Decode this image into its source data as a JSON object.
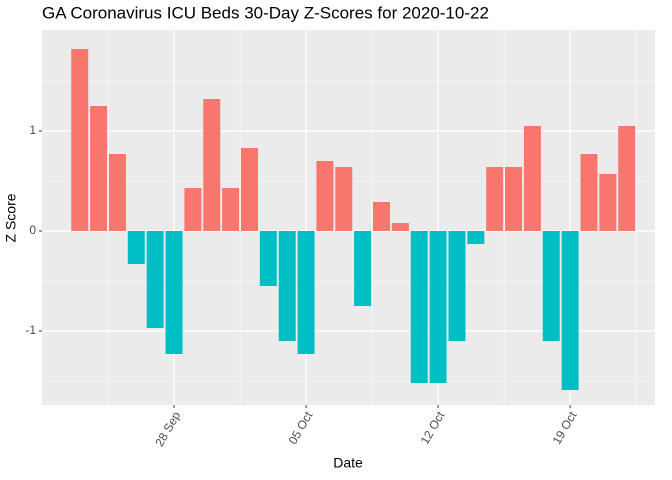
{
  "chart_data": {
    "type": "bar",
    "title": "GA Coronavirus ICU Beds 30-Day Z-Scores for 2020-10-22",
    "xlabel": "Date",
    "ylabel": "Z Score",
    "x": [
      "2020-09-23",
      "2020-09-24",
      "2020-09-25",
      "2020-09-26",
      "2020-09-27",
      "2020-09-28",
      "2020-09-29",
      "2020-09-30",
      "2020-10-01",
      "2020-10-02",
      "2020-10-03",
      "2020-10-04",
      "2020-10-05",
      "2020-10-06",
      "2020-10-07",
      "2020-10-08",
      "2020-10-09",
      "2020-10-10",
      "2020-10-11",
      "2020-10-12",
      "2020-10-13",
      "2020-10-14",
      "2020-10-15",
      "2020-10-16",
      "2020-10-17",
      "2020-10-18",
      "2020-10-19",
      "2020-10-20",
      "2020-10-21",
      "2020-10-22"
    ],
    "values": [
      1.82,
      1.25,
      0.77,
      -0.33,
      -0.97,
      -1.23,
      0.43,
      1.32,
      0.43,
      0.83,
      -0.55,
      -1.1,
      -1.23,
      0.7,
      0.64,
      -0.75,
      0.29,
      0.08,
      -1.52,
      -1.52,
      -1.1,
      -0.13,
      0.64,
      0.64,
      1.05,
      -1.1,
      -1.59,
      0.77,
      0.57,
      1.05
    ],
    "colors": {
      "positive": "#F8766D",
      "negative": "#00BFC4"
    },
    "xlim": [
      "2020-09-21",
      "2020-10-23T12:00"
    ],
    "xticks": [
      {
        "value": "2020-09-28",
        "label": "28 Sep"
      },
      {
        "value": "2020-10-05",
        "label": "05 Oct"
      },
      {
        "value": "2020-10-12",
        "label": "12 Oct"
      },
      {
        "value": "2020-10-19",
        "label": "19 Oct"
      }
    ],
    "xminor": [
      "2020-09-24T12:00",
      "2020-10-01T12:00",
      "2020-10-08T12:00",
      "2020-10-15T12:00",
      "2020-10-22T12:00"
    ],
    "ylim": [
      -1.74,
      2.01
    ],
    "yticks": [
      -1,
      0,
      1
    ],
    "yminor": [
      -1.5,
      -0.5,
      0.5,
      1.5
    ],
    "grid": true
  }
}
